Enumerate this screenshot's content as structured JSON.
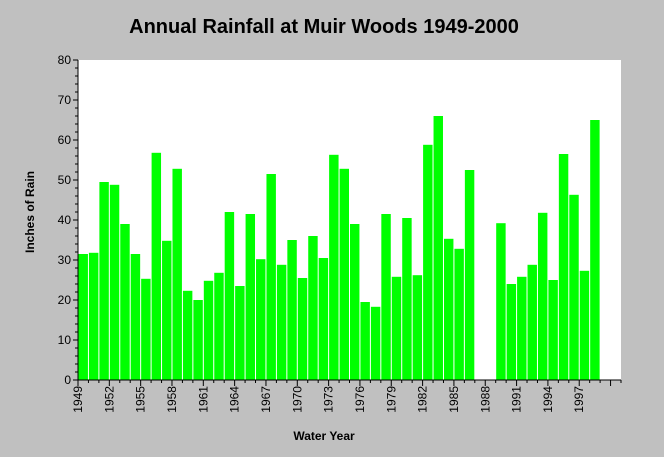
{
  "chart_data": {
    "type": "bar",
    "title": "Annual Rainfall at Muir Woods 1949-2000",
    "xlabel": "Water Year",
    "ylabel": "Inches of Rain",
    "ylim": [
      0,
      80
    ],
    "y_ticks": [
      0,
      10,
      20,
      30,
      40,
      50,
      60,
      70,
      80
    ],
    "x_tick_labels": [
      "1949",
      "1952",
      "1955",
      "1958",
      "1961",
      "1964",
      "1967",
      "1970",
      "1973",
      "1976",
      "1979",
      "1982",
      "1985",
      "1988",
      "1991",
      "1994",
      "1997"
    ],
    "grid": false,
    "bar_color": "#00ff00",
    "categories": [
      1949,
      1950,
      1951,
      1952,
      1953,
      1954,
      1955,
      1956,
      1957,
      1958,
      1959,
      1960,
      1961,
      1962,
      1963,
      1964,
      1965,
      1966,
      1967,
      1968,
      1969,
      1970,
      1971,
      1972,
      1973,
      1974,
      1975,
      1976,
      1977,
      1978,
      1979,
      1980,
      1981,
      1982,
      1983,
      1984,
      1985,
      1986,
      1987,
      1988,
      1989,
      1990,
      1991,
      1992,
      1993,
      1994,
      1995,
      1996,
      1997,
      1998,
      1999,
      2000
    ],
    "values": [
      31.5,
      31.8,
      49.5,
      48.8,
      39.0,
      31.5,
      25.3,
      56.8,
      34.8,
      52.8,
      22.3,
      20.0,
      24.8,
      26.8,
      42.0,
      23.5,
      41.5,
      30.2,
      51.5,
      28.8,
      35.0,
      25.5,
      36.0,
      30.5,
      56.3,
      52.8,
      39.0,
      19.5,
      18.3,
      41.5,
      25.8,
      40.5,
      26.2,
      58.8,
      66.0,
      35.3,
      32.8,
      52.5,
      null,
      null,
      39.2,
      24.0,
      25.8,
      28.8,
      41.8,
      25.0,
      56.5,
      46.3,
      27.3,
      65.0,
      null,
      null
    ]
  }
}
